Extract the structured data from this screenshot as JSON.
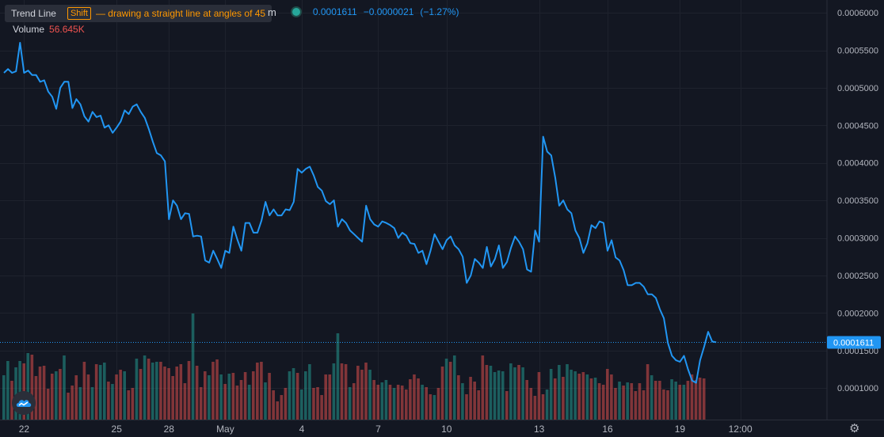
{
  "tooltip": {
    "tool": "Trend Line",
    "key": "Shift",
    "hint": "— drawing a straight line at angles of 45"
  },
  "legend": {
    "volume_label": "Volume",
    "volume_value": "56.645K",
    "truncated_symbol": "m",
    "price": "0.0001611",
    "change": "−0.0000021",
    "change_pct": "(−1.27%)"
  },
  "icons": {
    "logo": "tradingview-logo-icon",
    "settings": "gear-icon",
    "status": "status-dot-icon"
  },
  "colors": {
    "background": "#131722",
    "line": "#2196f3",
    "up": "#26a69a",
    "down": "#ef5350",
    "grid": "#1e222d",
    "axis_text": "#b2b5be",
    "price_label": "#2196f3"
  },
  "chart_data": {
    "type": "line",
    "series": [
      {
        "values": [
          0.00052,
          0.000525,
          0.00052,
          0.000522,
          0.00056,
          0.00052,
          0.000523,
          0.000517,
          0.000517,
          0.000508,
          0.00051,
          0.000495,
          0.000488,
          0.000472,
          0.0005,
          0.000508,
          0.000508,
          0.000473,
          0.000485,
          0.000478,
          0.000462,
          0.000455,
          0.000468,
          0.000461,
          0.000463,
          0.000447,
          0.00045,
          0.00044,
          0.000447,
          0.000455,
          0.00047,
          0.000465,
          0.000475,
          0.000478,
          0.000468,
          0.00046,
          0.000445,
          0.000428,
          0.000413,
          0.00041,
          0.000402,
          0.000325,
          0.00035,
          0.000343,
          0.000325,
          0.000333,
          0.000332,
          0.000302,
          0.000303,
          0.000302,
          0.00027,
          0.000267,
          0.000283,
          0.000272,
          0.00026,
          0.000283,
          0.00028,
          0.000315,
          0.000298,
          0.000283,
          0.00032,
          0.00032,
          0.000307,
          0.000307,
          0.000323,
          0.000348,
          0.00033,
          0.000338,
          0.00033,
          0.00033,
          0.000338,
          0.000337,
          0.000348,
          0.000392,
          0.000387,
          0.000392,
          0.000395,
          0.000383,
          0.000368,
          0.000363,
          0.000349,
          0.000345,
          0.00035,
          0.000315,
          0.000325,
          0.00032,
          0.00031,
          0.000305,
          0.0003,
          0.000295,
          0.000343,
          0.000325,
          0.000318,
          0.000315,
          0.000322,
          0.00032,
          0.000317,
          0.000313,
          0.0003,
          0.000307,
          0.000303,
          0.000293,
          0.000292,
          0.00028,
          0.000283,
          0.000265,
          0.000283,
          0.000305,
          0.000295,
          0.000285,
          0.000297,
          0.000302,
          0.00029,
          0.000285,
          0.000275,
          0.00024,
          0.00025,
          0.000272,
          0.000267,
          0.00026,
          0.000288,
          0.000262,
          0.000272,
          0.00029,
          0.00026,
          0.000268,
          0.000287,
          0.000302,
          0.000295,
          0.000285,
          0.000258,
          0.000255,
          0.00031,
          0.000295,
          0.000435,
          0.000415,
          0.00041,
          0.00038,
          0.000343,
          0.00035,
          0.000338,
          0.000333,
          0.00031,
          0.0003,
          0.00028,
          0.000293,
          0.000317,
          0.000313,
          0.000322,
          0.00032,
          0.000283,
          0.000297,
          0.000274,
          0.00027,
          0.000257,
          0.000237,
          0.000237,
          0.00024,
          0.00024,
          0.000235,
          0.000225,
          0.000225,
          0.00022,
          0.000205,
          0.000193,
          0.00016,
          0.000143,
          0.000137,
          0.000135,
          0.000143,
          0.000125,
          0.00011,
          0.000107,
          0.000137,
          0.000155,
          0.000175,
          0.000162,
          0.000161
        ]
      }
    ],
    "volume": [
      {
        "v": 0.56,
        "d": "u"
      },
      {
        "v": 0.74,
        "d": "u"
      },
      {
        "v": 0.49,
        "d": "d"
      },
      {
        "v": 0.66,
        "d": "u"
      },
      {
        "v": 0.74,
        "d": "u"
      },
      {
        "v": 0.71,
        "d": "d"
      },
      {
        "v": 0.84,
        "d": "u"
      },
      {
        "v": 0.82,
        "d": "d"
      },
      {
        "v": 0.55,
        "d": "d"
      },
      {
        "v": 0.67,
        "d": "d"
      },
      {
        "v": 0.68,
        "d": "d"
      },
      {
        "v": 0.39,
        "d": "d"
      },
      {
        "v": 0.58,
        "d": "d"
      },
      {
        "v": 0.61,
        "d": "u"
      },
      {
        "v": 0.64,
        "d": "d"
      },
      {
        "v": 0.81,
        "d": "u"
      },
      {
        "v": 0.34,
        "d": "d"
      },
      {
        "v": 0.43,
        "d": "d"
      },
      {
        "v": 0.56,
        "d": "d"
      },
      {
        "v": 0.41,
        "d": "u"
      },
      {
        "v": 0.73,
        "d": "d"
      },
      {
        "v": 0.57,
        "d": "d"
      },
      {
        "v": 0.41,
        "d": "u"
      },
      {
        "v": 0.7,
        "d": "d"
      },
      {
        "v": 0.69,
        "d": "u"
      },
      {
        "v": 0.72,
        "d": "u"
      },
      {
        "v": 0.48,
        "d": "d"
      },
      {
        "v": 0.45,
        "d": "u"
      },
      {
        "v": 0.57,
        "d": "d"
      },
      {
        "v": 0.63,
        "d": "d"
      },
      {
        "v": 0.61,
        "d": "u"
      },
      {
        "v": 0.37,
        "d": "d"
      },
      {
        "v": 0.4,
        "d": "d"
      },
      {
        "v": 0.77,
        "d": "u"
      },
      {
        "v": 0.64,
        "d": "d"
      },
      {
        "v": 0.81,
        "d": "u"
      },
      {
        "v": 0.77,
        "d": "d"
      },
      {
        "v": 0.72,
        "d": "u"
      },
      {
        "v": 0.73,
        "d": "u"
      },
      {
        "v": 0.73,
        "d": "d"
      },
      {
        "v": 0.67,
        "d": "d"
      },
      {
        "v": 0.65,
        "d": "d"
      },
      {
        "v": 0.55,
        "d": "d"
      },
      {
        "v": 0.67,
        "d": "d"
      },
      {
        "v": 0.7,
        "d": "d"
      },
      {
        "v": 0.46,
        "d": "d"
      },
      {
        "v": 0.74,
        "d": "d"
      },
      {
        "v": 1.34,
        "d": "u"
      },
      {
        "v": 0.68,
        "d": "d"
      },
      {
        "v": 0.41,
        "d": "d"
      },
      {
        "v": 0.61,
        "d": "d"
      },
      {
        "v": 0.56,
        "d": "u"
      },
      {
        "v": 0.73,
        "d": "d"
      },
      {
        "v": 0.76,
        "d": "d"
      },
      {
        "v": 0.57,
        "d": "u"
      },
      {
        "v": 0.45,
        "d": "d"
      },
      {
        "v": 0.58,
        "d": "u"
      },
      {
        "v": 0.59,
        "d": "d"
      },
      {
        "v": 0.43,
        "d": "d"
      },
      {
        "v": 0.5,
        "d": "d"
      },
      {
        "v": 0.6,
        "d": "d"
      },
      {
        "v": 0.44,
        "d": "u"
      },
      {
        "v": 0.61,
        "d": "d"
      },
      {
        "v": 0.72,
        "d": "d"
      },
      {
        "v": 0.73,
        "d": "d"
      },
      {
        "v": 0.47,
        "d": "u"
      },
      {
        "v": 0.59,
        "d": "d"
      },
      {
        "v": 0.37,
        "d": "d"
      },
      {
        "v": 0.23,
        "d": "d"
      },
      {
        "v": 0.31,
        "d": "d"
      },
      {
        "v": 0.4,
        "d": "d"
      },
      {
        "v": 0.61,
        "d": "u"
      },
      {
        "v": 0.65,
        "d": "u"
      },
      {
        "v": 0.59,
        "d": "d"
      },
      {
        "v": 0.38,
        "d": "u"
      },
      {
        "v": 0.61,
        "d": "u"
      },
      {
        "v": 0.7,
        "d": "u"
      },
      {
        "v": 0.4,
        "d": "d"
      },
      {
        "v": 0.41,
        "d": "d"
      },
      {
        "v": 0.31,
        "d": "d"
      },
      {
        "v": 0.57,
        "d": "d"
      },
      {
        "v": 0.57,
        "d": "d"
      },
      {
        "v": 0.71,
        "d": "u"
      },
      {
        "v": 1.09,
        "d": "u"
      },
      {
        "v": 0.71,
        "d": "d"
      },
      {
        "v": 0.7,
        "d": "d"
      },
      {
        "v": 0.41,
        "d": "u"
      },
      {
        "v": 0.46,
        "d": "d"
      },
      {
        "v": 0.68,
        "d": "d"
      },
      {
        "v": 0.63,
        "d": "d"
      },
      {
        "v": 0.72,
        "d": "d"
      },
      {
        "v": 0.63,
        "d": "u"
      },
      {
        "v": 0.5,
        "d": "d"
      },
      {
        "v": 0.44,
        "d": "d"
      },
      {
        "v": 0.47,
        "d": "u"
      },
      {
        "v": 0.5,
        "d": "u"
      },
      {
        "v": 0.44,
        "d": "d"
      },
      {
        "v": 0.4,
        "d": "u"
      },
      {
        "v": 0.44,
        "d": "d"
      },
      {
        "v": 0.43,
        "d": "d"
      },
      {
        "v": 0.38,
        "d": "d"
      },
      {
        "v": 0.51,
        "d": "d"
      },
      {
        "v": 0.57,
        "d": "d"
      },
      {
        "v": 0.52,
        "d": "d"
      },
      {
        "v": 0.44,
        "d": "u"
      },
      {
        "v": 0.41,
        "d": "d"
      },
      {
        "v": 0.32,
        "d": "d"
      },
      {
        "v": 0.31,
        "d": "u"
      },
      {
        "v": 0.4,
        "d": "d"
      },
      {
        "v": 0.67,
        "d": "d"
      },
      {
        "v": 0.77,
        "d": "u"
      },
      {
        "v": 0.73,
        "d": "d"
      },
      {
        "v": 0.81,
        "d": "u"
      },
      {
        "v": 0.56,
        "d": "d"
      },
      {
        "v": 0.46,
        "d": "u"
      },
      {
        "v": 0.32,
        "d": "d"
      },
      {
        "v": 0.54,
        "d": "d"
      },
      {
        "v": 0.48,
        "d": "d"
      },
      {
        "v": 0.37,
        "d": "d"
      },
      {
        "v": 0.81,
        "d": "d"
      },
      {
        "v": 0.69,
        "d": "d"
      },
      {
        "v": 0.68,
        "d": "u"
      },
      {
        "v": 0.6,
        "d": "u"
      },
      {
        "v": 0.62,
        "d": "u"
      },
      {
        "v": 0.61,
        "d": "u"
      },
      {
        "v": 0.36,
        "d": "d"
      },
      {
        "v": 0.71,
        "d": "u"
      },
      {
        "v": 0.66,
        "d": "u"
      },
      {
        "v": 0.69,
        "d": "d"
      },
      {
        "v": 0.66,
        "d": "u"
      },
      {
        "v": 0.5,
        "d": "d"
      },
      {
        "v": 0.4,
        "d": "d"
      },
      {
        "v": 0.3,
        "d": "d"
      },
      {
        "v": 0.6,
        "d": "d"
      },
      {
        "v": 0.32,
        "d": "d"
      },
      {
        "v": 0.38,
        "d": "u"
      },
      {
        "v": 0.64,
        "d": "u"
      },
      {
        "v": 0.52,
        "d": "d"
      },
      {
        "v": 0.69,
        "d": "u"
      },
      {
        "v": 0.54,
        "d": "d"
      },
      {
        "v": 0.7,
        "d": "u"
      },
      {
        "v": 0.63,
        "d": "u"
      },
      {
        "v": 0.61,
        "d": "u"
      },
      {
        "v": 0.58,
        "d": "d"
      },
      {
        "v": 0.6,
        "d": "d"
      },
      {
        "v": 0.57,
        "d": "u"
      },
      {
        "v": 0.52,
        "d": "d"
      },
      {
        "v": 0.53,
        "d": "u"
      },
      {
        "v": 0.46,
        "d": "d"
      },
      {
        "v": 0.44,
        "d": "d"
      },
      {
        "v": 0.64,
        "d": "d"
      },
      {
        "v": 0.57,
        "d": "d"
      },
      {
        "v": 0.4,
        "d": "d"
      },
      {
        "v": 0.48,
        "d": "u"
      },
      {
        "v": 0.43,
        "d": "d"
      },
      {
        "v": 0.47,
        "d": "u"
      },
      {
        "v": 0.46,
        "d": "d"
      },
      {
        "v": 0.36,
        "d": "d"
      },
      {
        "v": 0.46,
        "d": "d"
      },
      {
        "v": 0.37,
        "d": "d"
      },
      {
        "v": 0.7,
        "d": "d"
      },
      {
        "v": 0.56,
        "d": "u"
      },
      {
        "v": 0.49,
        "d": "d"
      },
      {
        "v": 0.49,
        "d": "d"
      },
      {
        "v": 0.38,
        "d": "d"
      },
      {
        "v": 0.37,
        "d": "d"
      },
      {
        "v": 0.51,
        "d": "u"
      },
      {
        "v": 0.48,
        "d": "u"
      },
      {
        "v": 0.44,
        "d": "d"
      },
      {
        "v": 0.44,
        "d": "u"
      },
      {
        "v": 0.49,
        "d": "d"
      },
      {
        "v": 0.57,
        "d": "d"
      },
      {
        "v": 0.5,
        "d": "d"
      },
      {
        "v": 0.53,
        "d": "d"
      },
      {
        "v": 0.52,
        "d": "d"
      }
    ],
    "x_ticks": [
      {
        "label": "22",
        "index": 5
      },
      {
        "label": "25",
        "index": 28
      },
      {
        "label": "28",
        "index": 41
      },
      {
        "label": "May",
        "index": 55
      },
      {
        "label": "4",
        "index": 74
      },
      {
        "label": "7",
        "index": 93
      },
      {
        "label": "10",
        "index": 110
      },
      {
        "label": "13",
        "index": 133
      },
      {
        "label": "16",
        "index": 150
      },
      {
        "label": "19",
        "index": 168
      },
      {
        "label": "12:00",
        "index": 183
      }
    ],
    "y_ticks": [
      "0.0006000",
      "0.0005500",
      "0.0005000",
      "0.0004500",
      "0.0004000",
      "0.0003500",
      "0.0003000",
      "0.0002500",
      "0.0002000",
      "0.0001500",
      "0.0001000"
    ],
    "ylim": [
      5.8e-05,
      0.000617
    ],
    "last_price_label": "0.0001611",
    "grid": true
  }
}
